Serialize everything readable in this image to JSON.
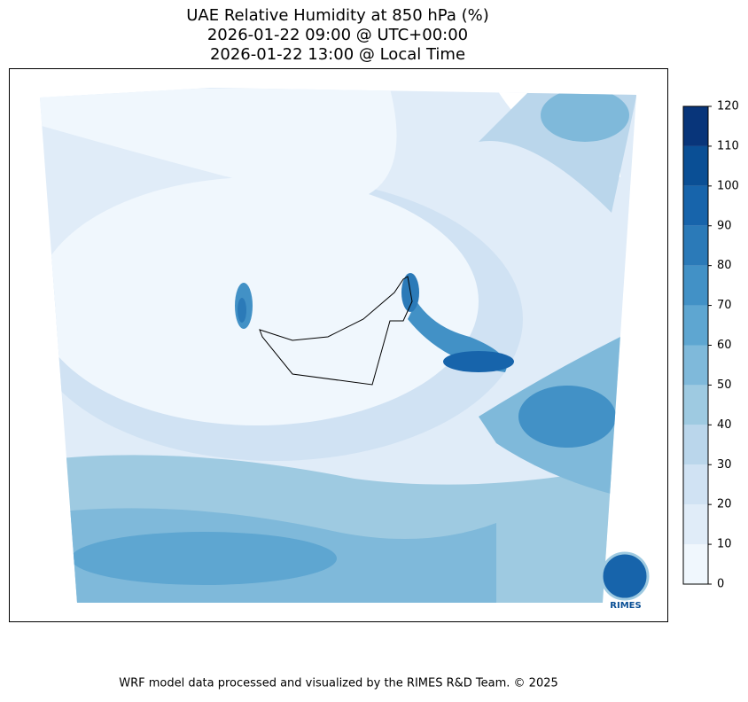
{
  "title_lines": [
    "UAE Relative Humidity at 850 hPa (%)",
    "2026-01-22 09:00 @ UTC+00:00",
    "2026-01-22 13:00 @ Local Time"
  ],
  "colorbar": {
    "ticks": [
      0,
      10,
      20,
      30,
      40,
      50,
      60,
      70,
      80,
      90,
      100,
      110,
      120
    ],
    "colors": [
      "#f0f7fd",
      "#e0ecf8",
      "#d0e2f3",
      "#bad6eb",
      "#9ecae1",
      "#7fb9da",
      "#5ea6d1",
      "#4291c6",
      "#2b7ab8",
      "#1764ab",
      "#0a4f95",
      "#08357a"
    ]
  },
  "logo": "RIMES",
  "footer": "WRF model data processed and visualized by the RIMES R&D Team. © 2025"
}
